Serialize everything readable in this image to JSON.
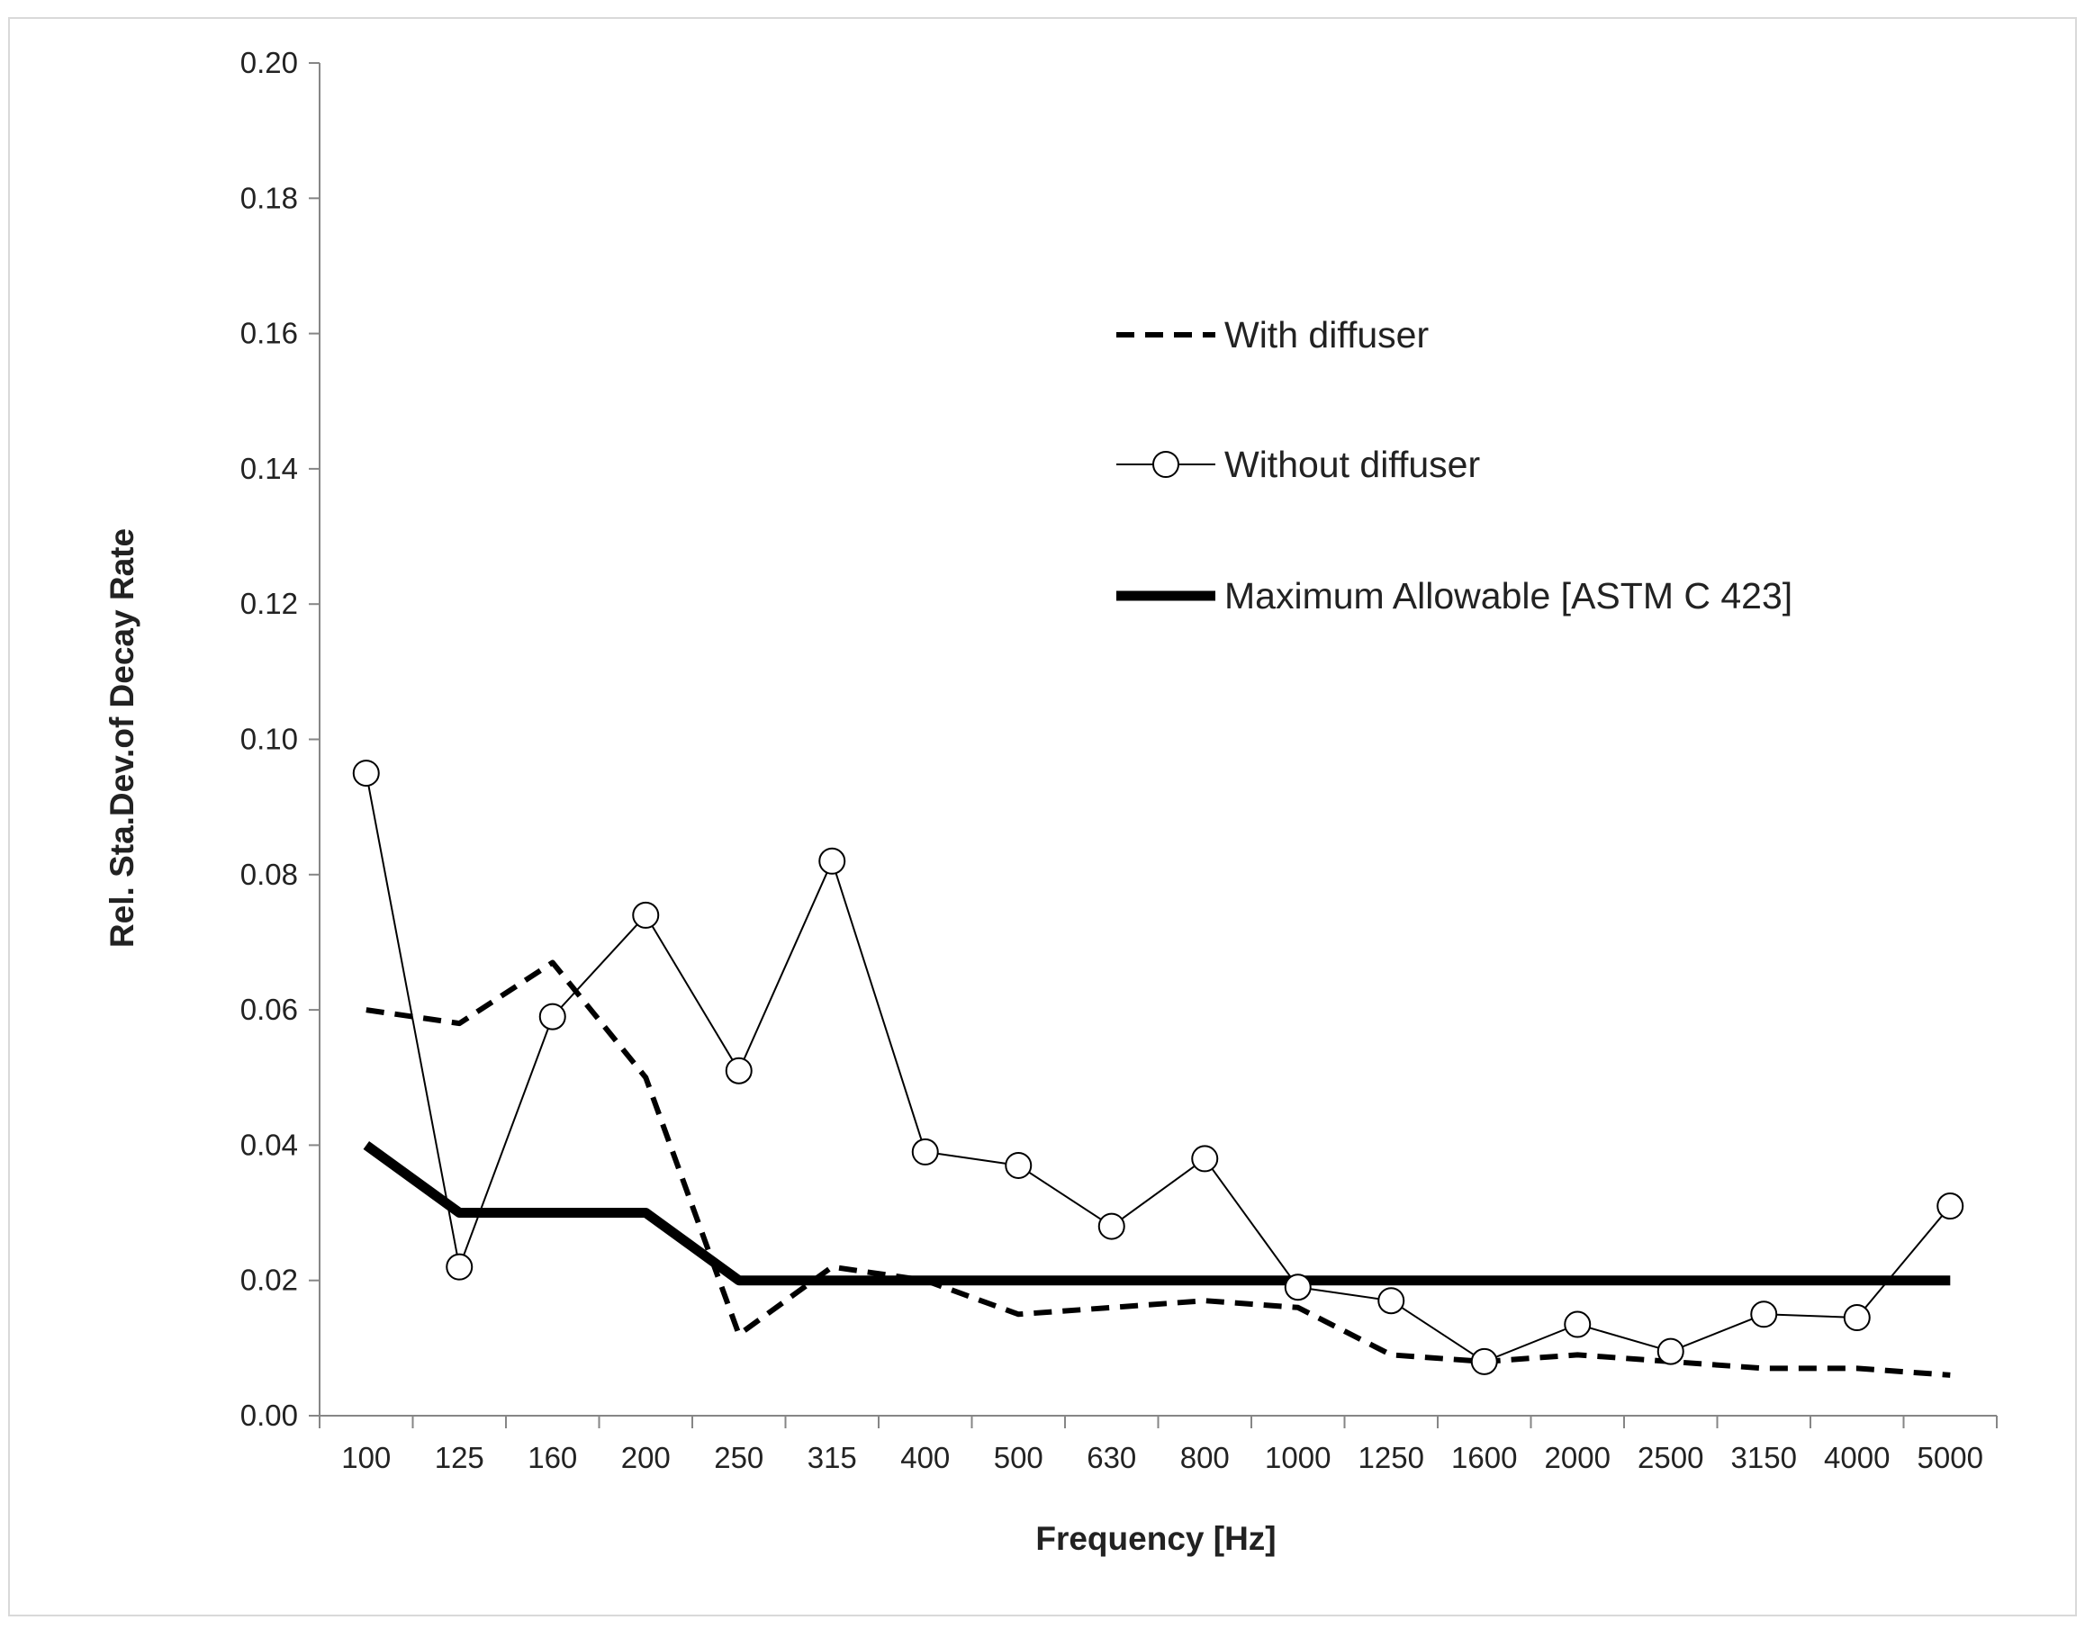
{
  "chart_data": {
    "type": "line",
    "title": "",
    "xlabel": "Frequency [Hz]",
    "ylabel": "Rel. Sta.Dev.of Decay Rate",
    "categories": [
      "100",
      "125",
      "160",
      "200",
      "250",
      "315",
      "400",
      "500",
      "630",
      "800",
      "1000",
      "1250",
      "1600",
      "2000",
      "2500",
      "3150",
      "4000",
      "5000"
    ],
    "ylim": [
      0,
      0.2
    ],
    "yticks": [
      "0.00",
      "0.02",
      "0.04",
      "0.06",
      "0.08",
      "0.10",
      "0.12",
      "0.14",
      "0.16",
      "0.18",
      "0.20"
    ],
    "grid": false,
    "legend_position": "upper-center",
    "series": [
      {
        "name": "With diffuser",
        "style": "dashed",
        "color": "#000000",
        "values": [
          0.06,
          0.058,
          0.067,
          0.05,
          0.012,
          0.022,
          0.02,
          0.015,
          0.016,
          0.017,
          0.016,
          0.009,
          0.008,
          0.009,
          0.008,
          0.007,
          0.007,
          0.006
        ]
      },
      {
        "name": "Without diffuser",
        "style": "thin-circle-markers",
        "color": "#000000",
        "values": [
          0.095,
          0.022,
          0.059,
          0.074,
          0.051,
          0.082,
          0.039,
          0.037,
          0.028,
          0.038,
          0.019,
          0.017,
          0.008,
          0.0135,
          0.0095,
          0.015,
          0.0145,
          0.031
        ]
      },
      {
        "name": "Maximum Allowable [ASTM C 423]",
        "style": "thick-solid",
        "color": "#000000",
        "values": [
          0.04,
          0.03,
          0.03,
          0.03,
          0.02,
          0.02,
          0.02,
          0.02,
          0.02,
          0.02,
          0.02,
          0.02,
          0.02,
          0.02,
          0.02,
          0.02,
          0.02,
          0.02
        ]
      }
    ]
  }
}
